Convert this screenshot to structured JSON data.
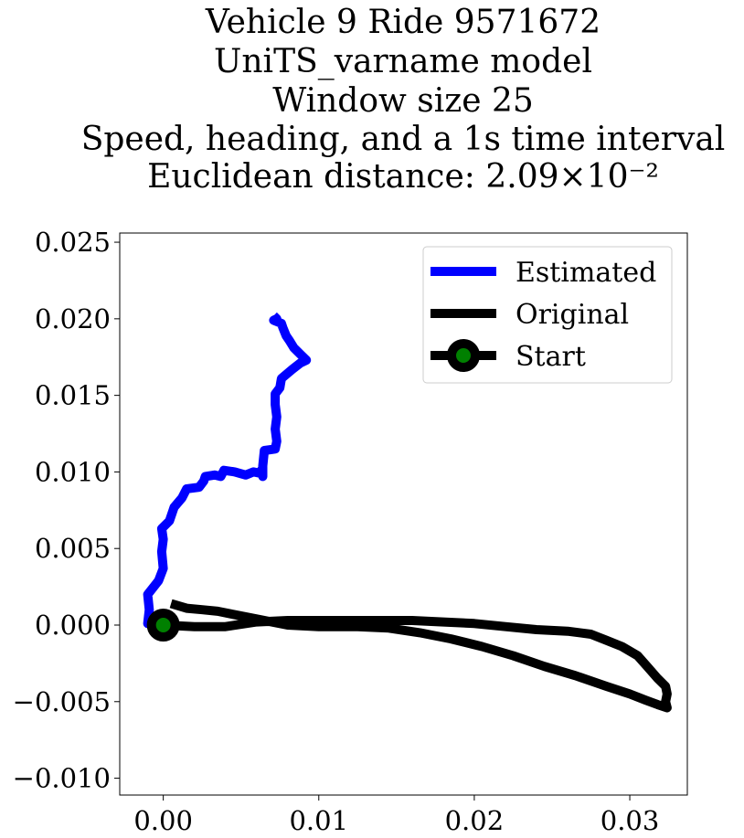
{
  "chart_data": {
    "type": "line",
    "title_lines": [
      "Vehicle 9 Ride 9571672",
      "UniTS_varname model",
      "Window size 25",
      "Speed, heading, and a 1s time interval",
      "Euclidean distance: 2.09×10⁻²"
    ],
    "xlabel": "",
    "ylabel": "",
    "xlim": [
      -0.0028,
      0.0337
    ],
    "ylim": [
      -0.0111,
      0.0256
    ],
    "x_ticks": [
      0.0,
      0.01,
      0.02,
      0.03
    ],
    "x_tick_labels": [
      "0.00",
      "0.01",
      "0.02",
      "0.03"
    ],
    "y_ticks": [
      -0.01,
      -0.005,
      0.0,
      0.005,
      0.01,
      0.015,
      0.02,
      0.025
    ],
    "y_tick_labels": [
      "−0.010",
      "−0.005",
      "0.000",
      "0.005",
      "0.010",
      "0.015",
      "0.020",
      "0.025"
    ],
    "grid": false,
    "legend_position": "top-right",
    "series": [
      {
        "name": "Estimated",
        "color": "#0000ff",
        "points": [
          [
            0.0,
            0.0
          ],
          [
            -0.001,
            0.0001
          ],
          [
            -0.0009,
            0.001
          ],
          [
            -0.001,
            0.002
          ],
          [
            -0.0003,
            0.0029
          ],
          [
            0.0,
            0.0037
          ],
          [
            -0.0001,
            0.0048
          ],
          [
            0.0,
            0.0056
          ],
          [
            -0.0001,
            0.0063
          ],
          [
            0.0004,
            0.0068
          ],
          [
            0.0007,
            0.0077
          ],
          [
            0.0012,
            0.0083
          ],
          [
            0.0015,
            0.0089
          ],
          [
            0.0023,
            0.009
          ],
          [
            0.0026,
            0.0094
          ],
          [
            0.0027,
            0.0097
          ],
          [
            0.0033,
            0.0098
          ],
          [
            0.0037,
            0.0097
          ],
          [
            0.0039,
            0.0101
          ],
          [
            0.0046,
            0.01
          ],
          [
            0.0053,
            0.0098
          ],
          [
            0.0058,
            0.01
          ],
          [
            0.0063,
            0.0099
          ],
          [
            0.0063,
            0.0101
          ],
          [
            0.0064,
            0.0097
          ],
          [
            0.0064,
            0.0104
          ],
          [
            0.0065,
            0.0114
          ],
          [
            0.0072,
            0.0115
          ],
          [
            0.0073,
            0.012
          ],
          [
            0.0072,
            0.0128
          ],
          [
            0.0073,
            0.0136
          ],
          [
            0.0072,
            0.0144
          ],
          [
            0.0072,
            0.0151
          ],
          [
            0.0075,
            0.0155
          ],
          [
            0.0076,
            0.0161
          ],
          [
            0.0083,
            0.0167
          ],
          [
            0.0088,
            0.0171
          ],
          [
            0.0092,
            0.0173
          ],
          [
            0.0088,
            0.0177
          ],
          [
            0.0084,
            0.0181
          ],
          [
            0.0081,
            0.0186
          ],
          [
            0.0079,
            0.0189
          ],
          [
            0.0077,
            0.0194
          ],
          [
            0.0076,
            0.0197
          ],
          [
            0.0071,
            0.0199
          ],
          [
            0.0073,
            0.02
          ],
          [
            0.0071,
            0.0202
          ]
        ]
      },
      {
        "name": "Original",
        "color": "#000000",
        "points": [
          [
            0.0,
            0.0
          ],
          [
            0.002,
            -0.0001
          ],
          [
            0.004,
            -0.0001
          ],
          [
            0.006,
            0.0002
          ],
          [
            0.008,
            0.0003
          ],
          [
            0.01,
            0.0003
          ],
          [
            0.012,
            0.0003
          ],
          [
            0.014,
            0.0003
          ],
          [
            0.016,
            0.0003
          ],
          [
            0.018,
            0.0002
          ],
          [
            0.02,
            0.0001
          ],
          [
            0.022,
            -0.0001
          ],
          [
            0.024,
            -0.0003
          ],
          [
            0.026,
            -0.0004
          ],
          [
            0.0275,
            -0.0006
          ],
          [
            0.0285,
            -0.001
          ],
          [
            0.0295,
            -0.0014
          ],
          [
            0.0305,
            -0.002
          ],
          [
            0.0312,
            -0.0028
          ],
          [
            0.0318,
            -0.0035
          ],
          [
            0.0323,
            -0.004
          ],
          [
            0.0324,
            -0.0045
          ],
          [
            0.0323,
            -0.005
          ],
          [
            0.0324,
            -0.0054
          ],
          [
            0.0318,
            -0.0052
          ],
          [
            0.031,
            -0.0049
          ],
          [
            0.03,
            -0.0045
          ],
          [
            0.0285,
            -0.004
          ],
          [
            0.0265,
            -0.0033
          ],
          [
            0.0245,
            -0.0027
          ],
          [
            0.0225,
            -0.002
          ],
          [
            0.0205,
            -0.0014
          ],
          [
            0.0185,
            -0.0009
          ],
          [
            0.0165,
            -0.0005
          ],
          [
            0.0145,
            -0.0002
          ],
          [
            0.0125,
            -0.0001
          ],
          [
            0.01,
            -0.0001
          ],
          [
            0.008,
            0.0
          ],
          [
            0.006,
            0.0004
          ],
          [
            0.0045,
            0.0007
          ],
          [
            0.0035,
            0.0009
          ],
          [
            0.0025,
            0.001
          ],
          [
            0.0015,
            0.0011
          ],
          [
            0.0005,
            0.0014
          ]
        ]
      }
    ],
    "start_marker": {
      "name": "Start",
      "point": [
        0.0,
        0.0
      ],
      "edge_color": "#000000",
      "face_color": "#008000"
    },
    "legend": [
      {
        "label": "Estimated",
        "color": "#0000ff",
        "kind": "line"
      },
      {
        "label": "Original",
        "color": "#000000",
        "kind": "line"
      },
      {
        "label": "Start",
        "color": "#000000",
        "marker_face": "#008000",
        "kind": "line-marker"
      }
    ]
  }
}
